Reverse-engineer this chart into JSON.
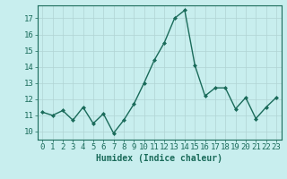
{
  "x": [
    0,
    1,
    2,
    3,
    4,
    5,
    6,
    7,
    8,
    9,
    10,
    11,
    12,
    13,
    14,
    15,
    16,
    17,
    18,
    19,
    20,
    21,
    22,
    23
  ],
  "y": [
    11.2,
    11.0,
    11.3,
    10.7,
    11.5,
    10.5,
    11.1,
    9.9,
    10.7,
    11.7,
    13.0,
    14.4,
    15.5,
    17.0,
    17.5,
    14.1,
    12.2,
    12.7,
    12.7,
    11.4,
    12.1,
    10.8,
    11.5,
    12.1
  ],
  "line_color": "#1a6b5a",
  "marker": "D",
  "marker_size": 2.0,
  "bg_color": "#c8eeee",
  "grid_color": "#b0d4d4",
  "xlabel": "Humidex (Indice chaleur)",
  "ylabel_ticks": [
    10,
    11,
    12,
    13,
    14,
    15,
    16,
    17
  ],
  "ylim": [
    9.5,
    17.8
  ],
  "xlim": [
    -0.5,
    23.5
  ],
  "tick_label_color": "#1a6b5a",
  "xlabel_color": "#1a6b5a",
  "linewidth": 1.0,
  "font_size": 6.5
}
